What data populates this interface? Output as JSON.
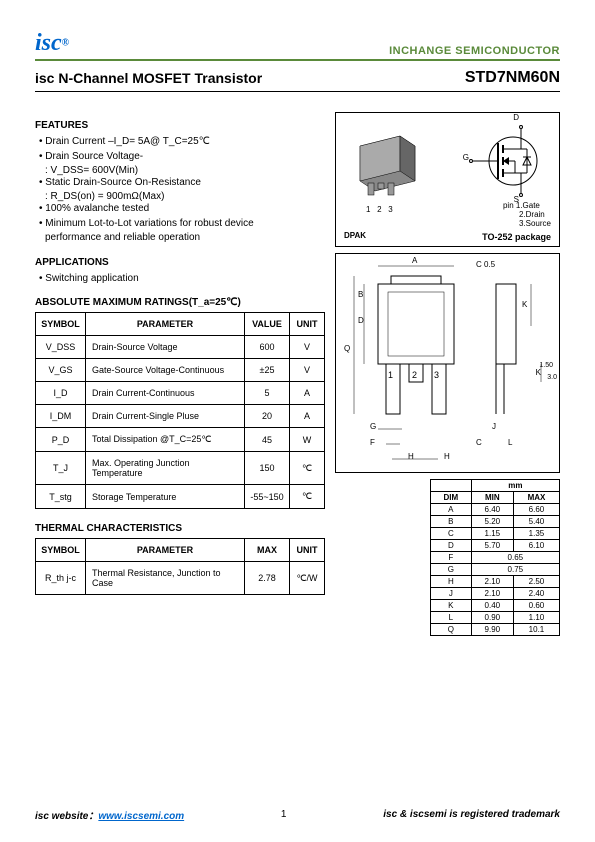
{
  "header": {
    "logo": "isc",
    "logo_sup": "®",
    "brand": "INCHANGE SEMICONDUCTOR"
  },
  "title": {
    "product_type": "isc N-Channel MOSFET Transistor",
    "part_number": "STD7NM60N"
  },
  "features": {
    "heading": "FEATURES",
    "items": [
      "Drain Current –I_D= 5A@ T_C=25℃",
      "Drain Source Voltage-",
      ": V_DSS= 600V(Min)",
      "Static Drain-Source On-Resistance",
      ": R_DS(on) = 900mΩ(Max)",
      "100% avalanche tested",
      "Minimum Lot-to-Lot variations for robust device",
      "performance and reliable operation"
    ]
  },
  "applications": {
    "heading": "APPLICATIONS",
    "items": [
      "Switching application"
    ]
  },
  "abs_max": {
    "heading": "ABSOLUTE MAXIMUM RATINGS(T_a=25℃)",
    "columns": [
      "SYMBOL",
      "PARAMETER",
      "VALUE",
      "UNIT"
    ],
    "rows": [
      {
        "sym": "V_DSS",
        "param": "Drain-Source Voltage",
        "val": "600",
        "unit": "V"
      },
      {
        "sym": "V_GS",
        "param": "Gate-Source Voltage-Continuous",
        "val": "±25",
        "unit": "V"
      },
      {
        "sym": "I_D",
        "param": "Drain Current-Continuous",
        "val": "5",
        "unit": "A"
      },
      {
        "sym": "I_DM",
        "param": "Drain Current-Single Pluse",
        "val": "20",
        "unit": "A"
      },
      {
        "sym": "P_D",
        "param": "Total Dissipation @T_C=25℃",
        "val": "45",
        "unit": "W"
      },
      {
        "sym": "T_J",
        "param": "Max. Operating Junction Temperature",
        "val": "150",
        "unit": "℃"
      },
      {
        "sym": "T_stg",
        "param": "Storage Temperature",
        "val": "-55~150",
        "unit": "℃"
      }
    ]
  },
  "thermal": {
    "heading": "THERMAL CHARACTERISTICS",
    "columns": [
      "SYMBOL",
      "PARAMETER",
      "MAX",
      "UNIT"
    ],
    "rows": [
      {
        "sym": "R_th j-c",
        "param": "Thermal Resistance, Junction to Case",
        "val": "2.78",
        "unit": "℃/W"
      }
    ]
  },
  "package": {
    "label": "DPAK",
    "pins": [
      "pin 1.Gate",
      "2.Drain",
      "3.Source"
    ],
    "pkg_name": "TO-252 package",
    "terminals": {
      "d": "D",
      "g": "G",
      "s": "S"
    },
    "pin_nums": [
      "1",
      "2",
      "3"
    ]
  },
  "outline": {
    "labels": {
      "A": "A",
      "B": "B",
      "C": "C",
      "D": "D",
      "F": "F",
      "G": "G",
      "H": "H",
      "J": "J",
      "K": "K",
      "L": "L",
      "Q": "Q",
      "Cangle": "C 0.5",
      "dim1": "1.50",
      "dim2": "3.0",
      "p1": "1",
      "p2": "2",
      "p3": "3"
    }
  },
  "dimensions": {
    "header_unit": "mm",
    "columns": [
      "DIM",
      "MIN",
      "MAX"
    ],
    "rows": [
      {
        "d": "A",
        "min": "6.40",
        "max": "6.60"
      },
      {
        "d": "B",
        "min": "5.20",
        "max": "5.40"
      },
      {
        "d": "C",
        "min": "1.15",
        "max": "1.35"
      },
      {
        "d": "D",
        "min": "5.70",
        "max": "6.10"
      },
      {
        "d": "F",
        "min": "0.65",
        "max": ""
      },
      {
        "d": "G",
        "min": "0.75",
        "max": ""
      },
      {
        "d": "H",
        "min": "2.10",
        "max": "2.50"
      },
      {
        "d": "J",
        "min": "2.10",
        "max": "2.40"
      },
      {
        "d": "K",
        "min": "0.40",
        "max": "0.60"
      },
      {
        "d": "L",
        "min": "0.90",
        "max": "1.10"
      },
      {
        "d": "Q",
        "min": "9.90",
        "max": "10.1"
      }
    ]
  },
  "footer": {
    "site_label": "isc website：",
    "site_url": "www.iscsemi.com",
    "page": "1",
    "trademark": "isc & iscsemi is registered trademark"
  }
}
